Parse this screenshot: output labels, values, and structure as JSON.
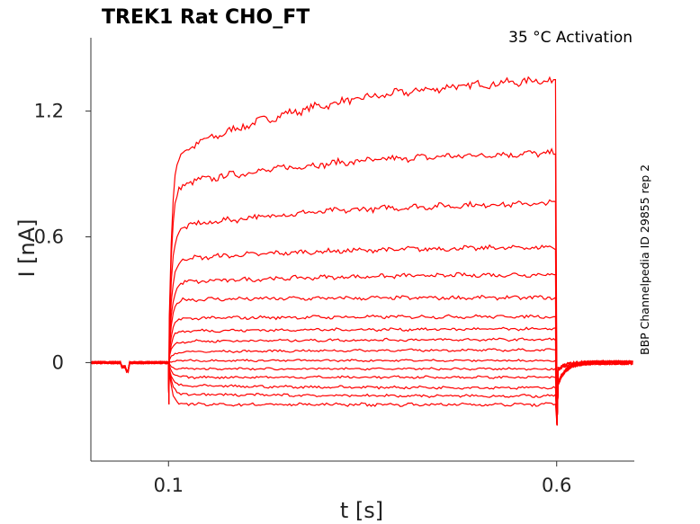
{
  "chart_data": {
    "type": "line",
    "title": "TREK1  Rat  CHO_FT",
    "annotation": "35 °C  Activation",
    "side_label": "BBP Channelpedia ID 29855 rep 2",
    "xlabel": "t [s]",
    "ylabel": "I [nA]",
    "xlim": [
      0.0,
      0.7
    ],
    "ylim": [
      -0.47,
      1.55
    ],
    "x_ticks": [
      0.1,
      0.6
    ],
    "x_tick_labels": [
      "0.1",
      "0.6"
    ],
    "y_ticks": [
      0,
      0.6,
      1.2
    ],
    "y_tick_labels": [
      "0",
      "0.6",
      "1.2"
    ],
    "grid": false,
    "color": "#ff0000",
    "pulse": {
      "start": 0.1,
      "end": 0.6
    },
    "series": [
      {
        "start_level": 0.98,
        "end_level": 1.35
      },
      {
        "start_level": 0.84,
        "end_level": 1.0
      },
      {
        "start_level": 0.64,
        "end_level": 0.76
      },
      {
        "start_level": 0.49,
        "end_level": 0.55
      },
      {
        "start_level": 0.38,
        "end_level": 0.42
      },
      {
        "start_level": 0.3,
        "end_level": 0.31
      },
      {
        "start_level": 0.21,
        "end_level": 0.22
      },
      {
        "start_level": 0.15,
        "end_level": 0.16
      },
      {
        "start_level": 0.1,
        "end_level": 0.11
      },
      {
        "start_level": 0.05,
        "end_level": 0.06
      },
      {
        "start_level": 0.01,
        "end_level": 0.01
      },
      {
        "start_level": -0.03,
        "end_level": -0.03
      },
      {
        "start_level": -0.07,
        "end_level": -0.07
      },
      {
        "start_level": -0.11,
        "end_level": -0.12
      },
      {
        "start_level": -0.15,
        "end_level": -0.16
      },
      {
        "start_level": -0.2,
        "end_level": -0.2
      }
    ]
  }
}
